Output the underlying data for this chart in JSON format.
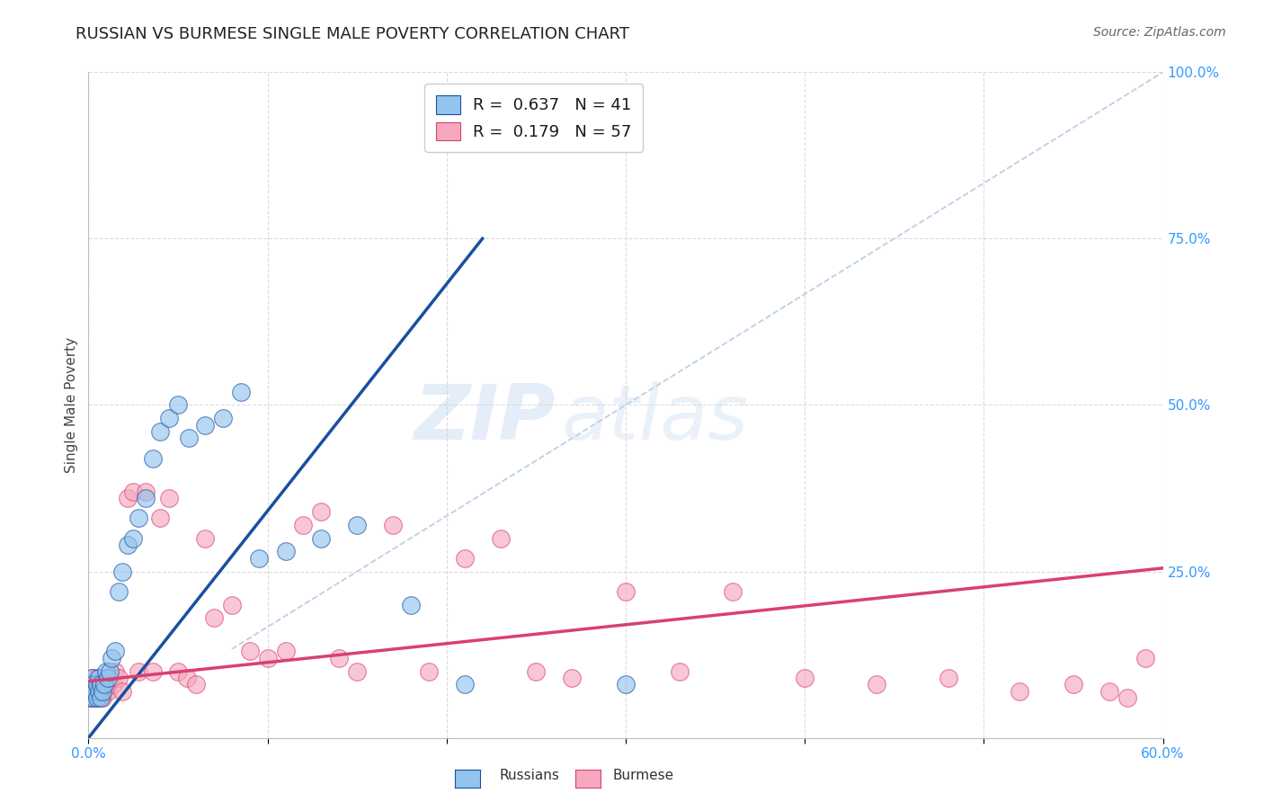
{
  "title": "RUSSIAN VS BURMESE SINGLE MALE POVERTY CORRELATION CHART",
  "source": "Source: ZipAtlas.com",
  "ylabel": "Single Male Poverty",
  "xlim": [
    0.0,
    0.6
  ],
  "ylim": [
    0.0,
    1.0
  ],
  "russian_color": "#93C4EE",
  "burmese_color": "#F5A8BE",
  "russian_line_color": "#1A4FA0",
  "burmese_line_color": "#D94070",
  "diagonal_color": "#B0C8E0",
  "russian_R": "0.637",
  "russian_N": "41",
  "burmese_R": "0.179",
  "burmese_N": "57",
  "background_color": "#FFFFFF",
  "grid_color": "#CCCCCC",
  "russian_line_x0": 0.0,
  "russian_line_y0": 0.0,
  "russian_line_x1": 0.22,
  "russian_line_y1": 0.75,
  "burmese_line_x0": 0.0,
  "burmese_line_y0": 0.085,
  "burmese_line_x1": 0.6,
  "burmese_line_y1": 0.255,
  "russian_scatter_x": [
    0.001,
    0.001,
    0.002,
    0.002,
    0.003,
    0.003,
    0.004,
    0.005,
    0.005,
    0.006,
    0.006,
    0.007,
    0.007,
    0.008,
    0.009,
    0.01,
    0.011,
    0.012,
    0.013,
    0.015,
    0.017,
    0.019,
    0.022,
    0.025,
    0.028,
    0.032,
    0.036,
    0.04,
    0.045,
    0.05,
    0.056,
    0.065,
    0.075,
    0.085,
    0.095,
    0.11,
    0.13,
    0.15,
    0.18,
    0.21,
    0.3
  ],
  "russian_scatter_y": [
    0.06,
    0.08,
    0.07,
    0.09,
    0.06,
    0.08,
    0.07,
    0.08,
    0.06,
    0.07,
    0.09,
    0.08,
    0.06,
    0.07,
    0.08,
    0.1,
    0.09,
    0.1,
    0.12,
    0.13,
    0.22,
    0.25,
    0.29,
    0.3,
    0.33,
    0.36,
    0.42,
    0.46,
    0.48,
    0.5,
    0.45,
    0.47,
    0.48,
    0.52,
    0.27,
    0.28,
    0.3,
    0.32,
    0.2,
    0.08,
    0.08
  ],
  "burmese_scatter_x": [
    0.001,
    0.001,
    0.002,
    0.003,
    0.003,
    0.004,
    0.005,
    0.005,
    0.006,
    0.007,
    0.007,
    0.008,
    0.009,
    0.01,
    0.011,
    0.012,
    0.014,
    0.015,
    0.017,
    0.019,
    0.022,
    0.025,
    0.028,
    0.032,
    0.036,
    0.04,
    0.045,
    0.05,
    0.055,
    0.06,
    0.065,
    0.07,
    0.08,
    0.09,
    0.1,
    0.11,
    0.12,
    0.13,
    0.14,
    0.15,
    0.17,
    0.19,
    0.21,
    0.23,
    0.25,
    0.27,
    0.3,
    0.33,
    0.36,
    0.4,
    0.44,
    0.48,
    0.52,
    0.55,
    0.57,
    0.58,
    0.59
  ],
  "burmese_scatter_y": [
    0.06,
    0.08,
    0.07,
    0.07,
    0.09,
    0.06,
    0.07,
    0.09,
    0.06,
    0.07,
    0.08,
    0.06,
    0.07,
    0.08,
    0.07,
    0.09,
    0.08,
    0.1,
    0.09,
    0.07,
    0.36,
    0.37,
    0.1,
    0.37,
    0.1,
    0.33,
    0.36,
    0.1,
    0.09,
    0.08,
    0.3,
    0.18,
    0.2,
    0.13,
    0.12,
    0.13,
    0.32,
    0.34,
    0.12,
    0.1,
    0.32,
    0.1,
    0.27,
    0.3,
    0.1,
    0.09,
    0.22,
    0.1,
    0.22,
    0.09,
    0.08,
    0.09,
    0.07,
    0.08,
    0.07,
    0.06,
    0.12
  ]
}
